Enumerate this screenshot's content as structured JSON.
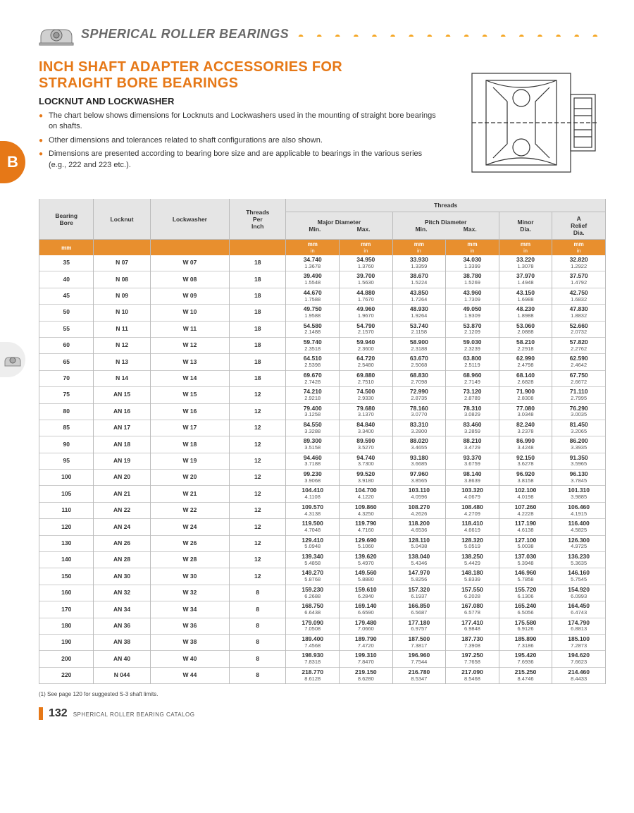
{
  "header": {
    "title": "SPHERICAL ROLLER BEARINGS"
  },
  "tab": {
    "letter": "B"
  },
  "section": {
    "title_line1": "INCH SHAFT ADAPTER ACCESSORIES FOR",
    "title_line2": "STRAIGHT BORE BEARINGS",
    "subtitle": "LOCKNUT AND LOCKWASHER",
    "bullets": [
      "The chart below shows dimensions for Locknuts and Lockwashers used in the mounting of straight bore bearings on shafts.",
      "Other dimensions and tolerances related to shaft configurations are also shown.",
      "Dimensions are presented according to bearing bore size and are applicable to bearings in the various series (e.g., 222 and 223 etc.)."
    ]
  },
  "table": {
    "group_header": "Threads",
    "columns": {
      "bore": "Bearing\nBore",
      "locknut": "Locknut",
      "lockwasher": "Lockwasher",
      "tpi": "Threads\nPer\nInch",
      "major_min": "Min.",
      "major_max": "Max.",
      "major_group": "Major Diameter",
      "pitch_min": "Min.",
      "pitch_max": "Max.",
      "pitch_group": "Pitch Diameter",
      "minor": "Minor\nDia.",
      "relief": "A\nRelief\nDia."
    },
    "units": {
      "mm": "mm",
      "in": "in"
    }
  },
  "rows": [
    {
      "bore": "35",
      "locknut": "N 07",
      "lockwasher": "W 07",
      "tpi": "18",
      "maj_min_mm": "34.740",
      "maj_min_in": "1.3678",
      "maj_max_mm": "34.950",
      "maj_max_in": "1.3760",
      "pit_min_mm": "33.930",
      "pit_min_in": "1.3359",
      "pit_max_mm": "34.030",
      "pit_max_in": "1.3399",
      "minor_mm": "33.220",
      "minor_in": "1.3078",
      "relief_mm": "32.820",
      "relief_in": "1.2922"
    },
    {
      "bore": "40",
      "locknut": "N 08",
      "lockwasher": "W 08",
      "tpi": "18",
      "maj_min_mm": "39.490",
      "maj_min_in": "1.5548",
      "maj_max_mm": "39.700",
      "maj_max_in": "1.5630",
      "pit_min_mm": "38.670",
      "pit_min_in": "1.5224",
      "pit_max_mm": "38.780",
      "pit_max_in": "1.5269",
      "minor_mm": "37.970",
      "minor_in": "1.4948",
      "relief_mm": "37.570",
      "relief_in": "1.4792"
    },
    {
      "bore": "45",
      "locknut": "N 09",
      "lockwasher": "W 09",
      "tpi": "18",
      "maj_min_mm": "44.670",
      "maj_min_in": "1.7588",
      "maj_max_mm": "44.880",
      "maj_max_in": "1.7670",
      "pit_min_mm": "43.850",
      "pit_min_in": "1.7264",
      "pit_max_mm": "43.960",
      "pit_max_in": "1.7309",
      "minor_mm": "43.150",
      "minor_in": "1.6988",
      "relief_mm": "42.750",
      "relief_in": "1.6832"
    },
    {
      "bore": "50",
      "locknut": "N 10",
      "lockwasher": "W 10",
      "tpi": "18",
      "maj_min_mm": "49.750",
      "maj_min_in": "1.9588",
      "maj_max_mm": "49.960",
      "maj_max_in": "1.9670",
      "pit_min_mm": "48.930",
      "pit_min_in": "1.9264",
      "pit_max_mm": "49.050",
      "pit_max_in": "1.9309",
      "minor_mm": "48.230",
      "minor_in": "1.8988",
      "relief_mm": "47.830",
      "relief_in": "1.8832"
    },
    {
      "bore": "55",
      "locknut": "N 11",
      "lockwasher": "W 11",
      "tpi": "18",
      "maj_min_mm": "54.580",
      "maj_min_in": "2.1488",
      "maj_max_mm": "54.790",
      "maj_max_in": "2.1570",
      "pit_min_mm": "53.740",
      "pit_min_in": "2.1158",
      "pit_max_mm": "53.870",
      "pit_max_in": "2.1209",
      "minor_mm": "53.060",
      "minor_in": "2.0888",
      "relief_mm": "52.660",
      "relief_in": "2.0732"
    },
    {
      "bore": "60",
      "locknut": "N 12",
      "lockwasher": "W 12",
      "tpi": "18",
      "maj_min_mm": "59.740",
      "maj_min_in": "2.3518",
      "maj_max_mm": "59.940",
      "maj_max_in": "2.3600",
      "pit_min_mm": "58.900",
      "pit_min_in": "2.3188",
      "pit_max_mm": "59.030",
      "pit_max_in": "2.3239",
      "minor_mm": "58.210",
      "minor_in": "2.2918",
      "relief_mm": "57.820",
      "relief_in": "2.2762"
    },
    {
      "bore": "65",
      "locknut": "N 13",
      "lockwasher": "W 13",
      "tpi": "18",
      "maj_min_mm": "64.510",
      "maj_min_in": "2.5398",
      "maj_max_mm": "64.720",
      "maj_max_in": "2.5480",
      "pit_min_mm": "63.670",
      "pit_min_in": "2.5068",
      "pit_max_mm": "63.800",
      "pit_max_in": "2.5119",
      "minor_mm": "62.990",
      "minor_in": "2.4798",
      "relief_mm": "62.590",
      "relief_in": "2.4642"
    },
    {
      "bore": "70",
      "locknut": "N 14",
      "lockwasher": "W 14",
      "tpi": "18",
      "maj_min_mm": "69.670",
      "maj_min_in": "2.7428",
      "maj_max_mm": "69.880",
      "maj_max_in": "2.7510",
      "pit_min_mm": "68.830",
      "pit_min_in": "2.7098",
      "pit_max_mm": "68.960",
      "pit_max_in": "2.7149",
      "minor_mm": "68.140",
      "minor_in": "2.6828",
      "relief_mm": "67.750",
      "relief_in": "2.6672"
    },
    {
      "bore": "75",
      "locknut": "AN 15",
      "lockwasher": "W 15",
      "tpi": "12",
      "maj_min_mm": "74.210",
      "maj_min_in": "2.9218",
      "maj_max_mm": "74.500",
      "maj_max_in": "2.9330",
      "pit_min_mm": "72.990",
      "pit_min_in": "2.8735",
      "pit_max_mm": "73.120",
      "pit_max_in": "2.8789",
      "minor_mm": "71.900",
      "minor_in": "2.8308",
      "relief_mm": "71.110",
      "relief_in": "2.7995"
    },
    {
      "bore": "80",
      "locknut": "AN 16",
      "lockwasher": "W 16",
      "tpi": "12",
      "maj_min_mm": "79.400",
      "maj_min_in": "3.1258",
      "maj_max_mm": "79.680",
      "maj_max_in": "3.1370",
      "pit_min_mm": "78.160",
      "pit_min_in": "3.0770",
      "pit_max_mm": "78.310",
      "pit_max_in": "3.0829",
      "minor_mm": "77.080",
      "minor_in": "3.0348",
      "relief_mm": "76.290",
      "relief_in": "3.0035"
    },
    {
      "bore": "85",
      "locknut": "AN 17",
      "lockwasher": "W 17",
      "tpi": "12",
      "maj_min_mm": "84.550",
      "maj_min_in": "3.3288",
      "maj_max_mm": "84.840",
      "maj_max_in": "3.3400",
      "pit_min_mm": "83.310",
      "pit_min_in": "3.2800",
      "pit_max_mm": "83.460",
      "pit_max_in": "3.2859",
      "minor_mm": "82.240",
      "minor_in": "3.2378",
      "relief_mm": "81.450",
      "relief_in": "3.2065"
    },
    {
      "bore": "90",
      "locknut": "AN 18",
      "lockwasher": "W 18",
      "tpi": "12",
      "maj_min_mm": "89.300",
      "maj_min_in": "3.5158",
      "maj_max_mm": "89.590",
      "maj_max_in": "3.5270",
      "pit_min_mm": "88.020",
      "pit_min_in": "3.4655",
      "pit_max_mm": "88.210",
      "pit_max_in": "3.4729",
      "minor_mm": "86.990",
      "minor_in": "3.4248",
      "relief_mm": "86.200",
      "relief_in": "3.3935"
    },
    {
      "bore": "95",
      "locknut": "AN 19",
      "lockwasher": "W 19",
      "tpi": "12",
      "maj_min_mm": "94.460",
      "maj_min_in": "3.7188",
      "maj_max_mm": "94.740",
      "maj_max_in": "3.7300",
      "pit_min_mm": "93.180",
      "pit_min_in": "3.6685",
      "pit_max_mm": "93.370",
      "pit_max_in": "3.6759",
      "minor_mm": "92.150",
      "minor_in": "3.6278",
      "relief_mm": "91.350",
      "relief_in": "3.5965"
    },
    {
      "bore": "100",
      "locknut": "AN 20",
      "lockwasher": "W 20",
      "tpi": "12",
      "maj_min_mm": "99.230",
      "maj_min_in": "3.9068",
      "maj_max_mm": "99.520",
      "maj_max_in": "3.9180",
      "pit_min_mm": "97.960",
      "pit_min_in": "3.8565",
      "pit_max_mm": "98.140",
      "pit_max_in": "3.8639",
      "minor_mm": "96.920",
      "minor_in": "3.8158",
      "relief_mm": "96.130",
      "relief_in": "3.7845"
    },
    {
      "bore": "105",
      "locknut": "AN 21",
      "lockwasher": "W 21",
      "tpi": "12",
      "maj_min_mm": "104.410",
      "maj_min_in": "4.1108",
      "maj_max_mm": "104.700",
      "maj_max_in": "4.1220",
      "pit_min_mm": "103.110",
      "pit_min_in": "4.0596",
      "pit_max_mm": "103.320",
      "pit_max_in": "4.0679",
      "minor_mm": "102.100",
      "minor_in": "4.0198",
      "relief_mm": "101.310",
      "relief_in": "3.9885"
    },
    {
      "bore": "110",
      "locknut": "AN 22",
      "lockwasher": "W 22",
      "tpi": "12",
      "maj_min_mm": "109.570",
      "maj_min_in": "4.3138",
      "maj_max_mm": "109.860",
      "maj_max_in": "4.3250",
      "pit_min_mm": "108.270",
      "pit_min_in": "4.2626",
      "pit_max_mm": "108.480",
      "pit_max_in": "4.2709",
      "minor_mm": "107.260",
      "minor_in": "4.2228",
      "relief_mm": "106.460",
      "relief_in": "4.1915"
    },
    {
      "bore": "120",
      "locknut": "AN 24",
      "lockwasher": "W 24",
      "tpi": "12",
      "maj_min_mm": "119.500",
      "maj_min_in": "4.7048",
      "maj_max_mm": "119.790",
      "maj_max_in": "4.7160",
      "pit_min_mm": "118.200",
      "pit_min_in": "4.6536",
      "pit_max_mm": "118.410",
      "pit_max_in": "4.6619",
      "minor_mm": "117.190",
      "minor_in": "4.6138",
      "relief_mm": "116.400",
      "relief_in": "4.5825"
    },
    {
      "bore": "130",
      "locknut": "AN 26",
      "lockwasher": "W 26",
      "tpi": "12",
      "maj_min_mm": "129.410",
      "maj_min_in": "5.0948",
      "maj_max_mm": "129.690",
      "maj_max_in": "5.1060",
      "pit_min_mm": "128.110",
      "pit_min_in": "5.0438",
      "pit_max_mm": "128.320",
      "pit_max_in": "5.0519",
      "minor_mm": "127.100",
      "minor_in": "5.0038",
      "relief_mm": "126.300",
      "relief_in": "4.9725"
    },
    {
      "bore": "140",
      "locknut": "AN 28",
      "lockwasher": "W 28",
      "tpi": "12",
      "maj_min_mm": "139.340",
      "maj_min_in": "5.4858",
      "maj_max_mm": "139.620",
      "maj_max_in": "5.4970",
      "pit_min_mm": "138.040",
      "pit_min_in": "5.4346",
      "pit_max_mm": "138.250",
      "pit_max_in": "5.4429",
      "minor_mm": "137.030",
      "minor_in": "5.3948",
      "relief_mm": "136.230",
      "relief_in": "5.3635"
    },
    {
      "bore": "150",
      "locknut": "AN 30",
      "lockwasher": "W 30",
      "tpi": "12",
      "maj_min_mm": "149.270",
      "maj_min_in": "5.8768",
      "maj_max_mm": "149.560",
      "maj_max_in": "5.8880",
      "pit_min_mm": "147.970",
      "pit_min_in": "5.8256",
      "pit_max_mm": "148.180",
      "pit_max_in": "5.8339",
      "minor_mm": "146.960",
      "minor_in": "5.7858",
      "relief_mm": "146.160",
      "relief_in": "5.7545"
    },
    {
      "bore": "160",
      "locknut": "AN 32",
      "lockwasher": "W 32",
      "tpi": "8",
      "maj_min_mm": "159.230",
      "maj_min_in": "6.2688",
      "maj_max_mm": "159.610",
      "maj_max_in": "6.2840",
      "pit_min_mm": "157.320",
      "pit_min_in": "6.1937",
      "pit_max_mm": "157.550",
      "pit_max_in": "6.2028",
      "minor_mm": "155.720",
      "minor_in": "6.1306",
      "relief_mm": "154.920",
      "relief_in": "6.0993"
    },
    {
      "bore": "170",
      "locknut": "AN 34",
      "lockwasher": "W 34",
      "tpi": "8",
      "maj_min_mm": "168.750",
      "maj_min_in": "6.6438",
      "maj_max_mm": "169.140",
      "maj_max_in": "6.6590",
      "pit_min_mm": "166.850",
      "pit_min_in": "6.5687",
      "pit_max_mm": "167.080",
      "pit_max_in": "6.5778",
      "minor_mm": "165.240",
      "minor_in": "6.5056",
      "relief_mm": "164.450",
      "relief_in": "6.4743"
    },
    {
      "bore": "180",
      "locknut": "AN 36",
      "lockwasher": "W 36",
      "tpi": "8",
      "maj_min_mm": "179.090",
      "maj_min_in": "7.0508",
      "maj_max_mm": "179.480",
      "maj_max_in": "7.0660",
      "pit_min_mm": "177.180",
      "pit_min_in": "6.9757",
      "pit_max_mm": "177.410",
      "pit_max_in": "6.9848",
      "minor_mm": "175.580",
      "minor_in": "6.9126",
      "relief_mm": "174.790",
      "relief_in": "6.8813"
    },
    {
      "bore": "190",
      "locknut": "AN 38",
      "lockwasher": "W 38",
      "tpi": "8",
      "maj_min_mm": "189.400",
      "maj_min_in": "7.4568",
      "maj_max_mm": "189.790",
      "maj_max_in": "7.4720",
      "pit_min_mm": "187.500",
      "pit_min_in": "7.3817",
      "pit_max_mm": "187.730",
      "pit_max_in": "7.3908",
      "minor_mm": "185.890",
      "minor_in": "7.3186",
      "relief_mm": "185.100",
      "relief_in": "7.2873"
    },
    {
      "bore": "200",
      "locknut": "AN 40",
      "lockwasher": "W 40",
      "tpi": "8",
      "maj_min_mm": "198.930",
      "maj_min_in": "7.8318",
      "maj_max_mm": "199.310",
      "maj_max_in": "7.8470",
      "pit_min_mm": "196.960",
      "pit_min_in": "7.7544",
      "pit_max_mm": "197.250",
      "pit_max_in": "7.7658",
      "minor_mm": "195.420",
      "minor_in": "7.6936",
      "relief_mm": "194.620",
      "relief_in": "7.6623"
    },
    {
      "bore": "220",
      "locknut": "N 044",
      "lockwasher": "W 44",
      "tpi": "8",
      "maj_min_mm": "218.770",
      "maj_min_in": "8.6128",
      "maj_max_mm": "219.150",
      "maj_max_in": "8.6280",
      "pit_min_mm": "216.780",
      "pit_min_in": "8.5347",
      "pit_max_mm": "217.090",
      "pit_max_in": "8.5468",
      "minor_mm": "215.250",
      "minor_in": "8.4746",
      "relief_mm": "214.460",
      "relief_in": "8.4433"
    }
  ],
  "footnote": "(1) See page 120 for suggested S-3 shaft limits.",
  "footer": {
    "page_number": "132",
    "text": "SPHERICAL ROLLER BEARING CATALOG"
  }
}
